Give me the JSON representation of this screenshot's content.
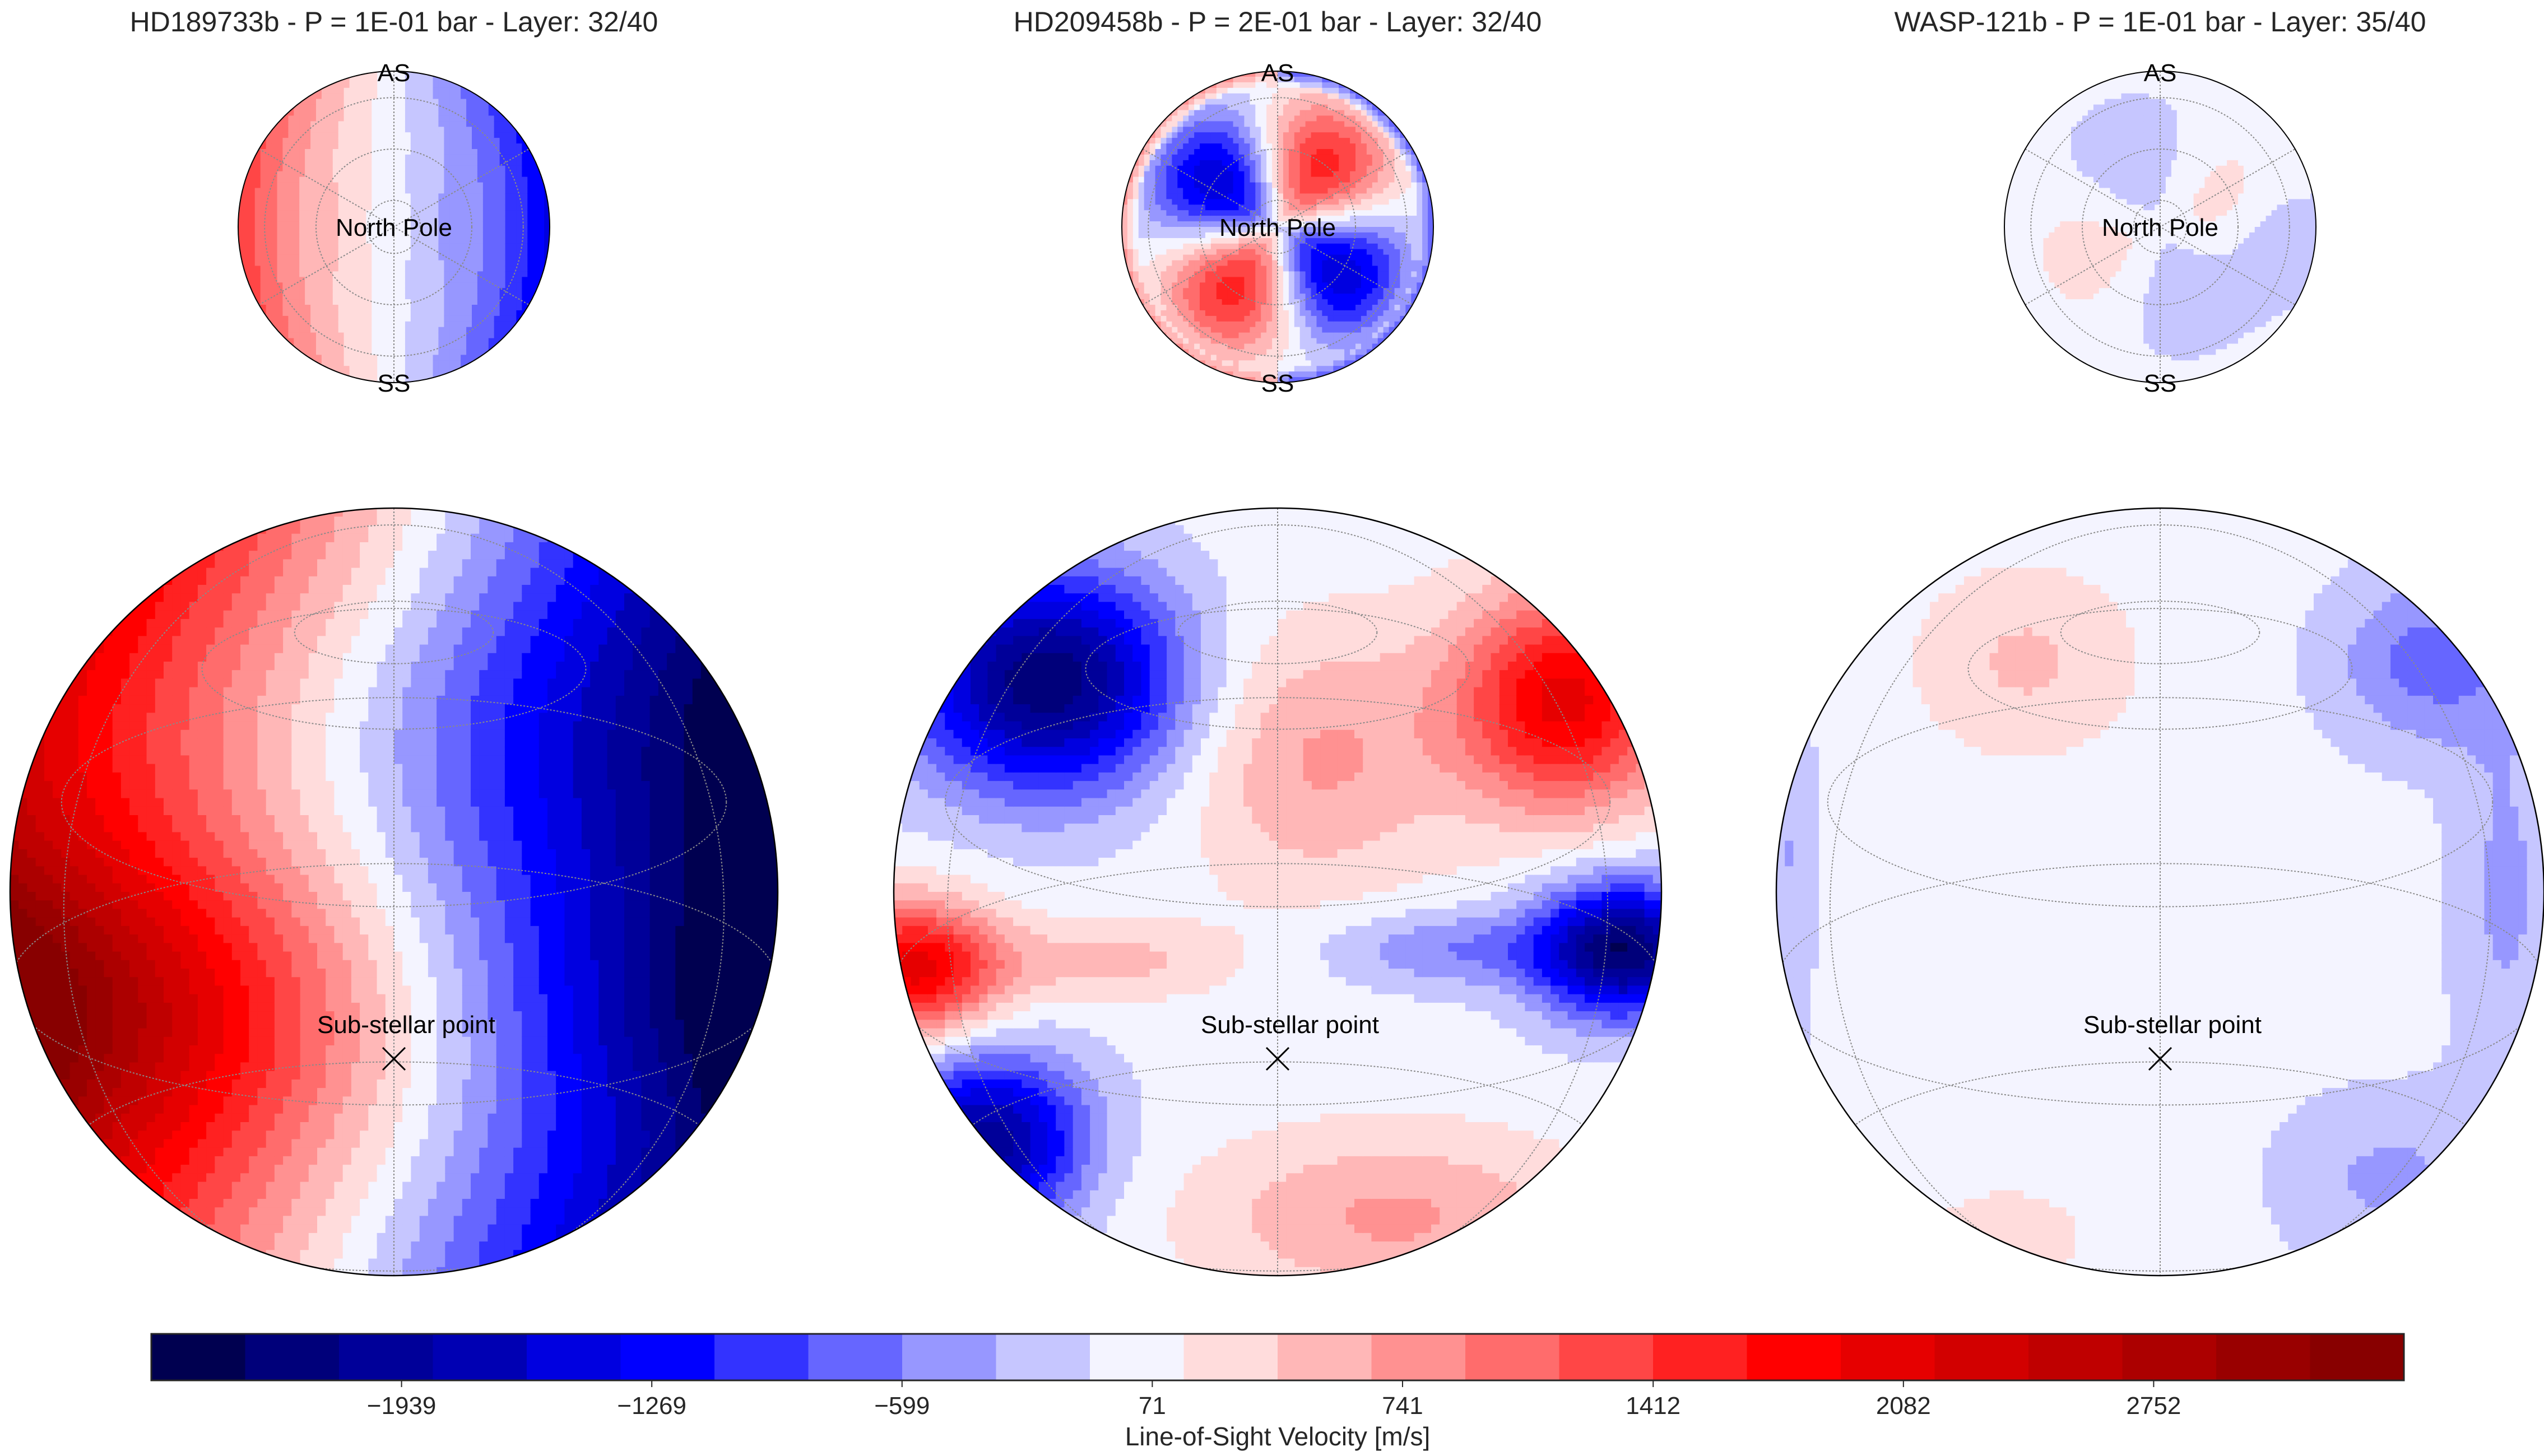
{
  "chart_data": {
    "type": "heatmap",
    "description": "Line-of-sight velocity maps projected on exoplanet globes (orthographic views) with polar insets",
    "colormap": "seismic",
    "colorbar": {
      "label": "Line-of-Sight Velocity [m/s]",
      "range": [
        -2609,
        3422
      ],
      "levels": 24,
      "ticks": [
        -1939,
        -1269,
        -599,
        71,
        741,
        1412,
        2082,
        2752
      ],
      "tick_labels": [
        "−1939",
        "−1269",
        "−599",
        "71",
        "741",
        "1412",
        "2082",
        "2752"
      ],
      "colors": [
        "#000050",
        "#00007a",
        "#000099",
        "#0000b3",
        "#0000e0",
        "#0000ff",
        "#3333ff",
        "#6666ff",
        "#9797ff",
        "#c6c6ff",
        "#f4f4ff",
        "#ffdcdc",
        "#ffb7b7",
        "#ff9191",
        "#ff6c6c",
        "#ff4646",
        "#ff2121",
        "#ff0000",
        "#e60000",
        "#d20000",
        "#bf0000",
        "#ac0000",
        "#990000",
        "#880000"
      ]
    },
    "panels": [
      {
        "title": "HD189733b - P = 1E-01 bar - Layer: 32/40",
        "planet": "HD189733b",
        "pressure_bar": 0.1,
        "layer": 32,
        "layers_total": 40,
        "polar_labels": {
          "top": "AS",
          "bottom": "SS",
          "center": "North Pole"
        },
        "globe_label": "Sub-stellar point",
        "pattern": "bands",
        "approx_min": -2600,
        "approx_max": 2600
      },
      {
        "title": "HD209458b - P = 2E-01 bar - Layer: 32/40",
        "planet": "HD209458b",
        "pressure_bar": 0.2,
        "layer": 32,
        "layers_total": 40,
        "polar_labels": {
          "top": "AS",
          "bottom": "SS",
          "center": "North Pole"
        },
        "globe_label": "Sub-stellar point",
        "pattern": "quadrupole",
        "approx_min": -2400,
        "approx_max": 1900
      },
      {
        "title": "WASP-121b - P = 1E-01 bar - Layer: 35/40",
        "planet": "WASP-121b",
        "pressure_bar": 0.1,
        "layer": 35,
        "layers_total": 40,
        "polar_labels": {
          "top": "AS",
          "bottom": "SS",
          "center": "North Pole"
        },
        "globe_label": "Sub-stellar point",
        "pattern": "weak",
        "approx_min": -900,
        "approx_max": 500
      }
    ]
  }
}
